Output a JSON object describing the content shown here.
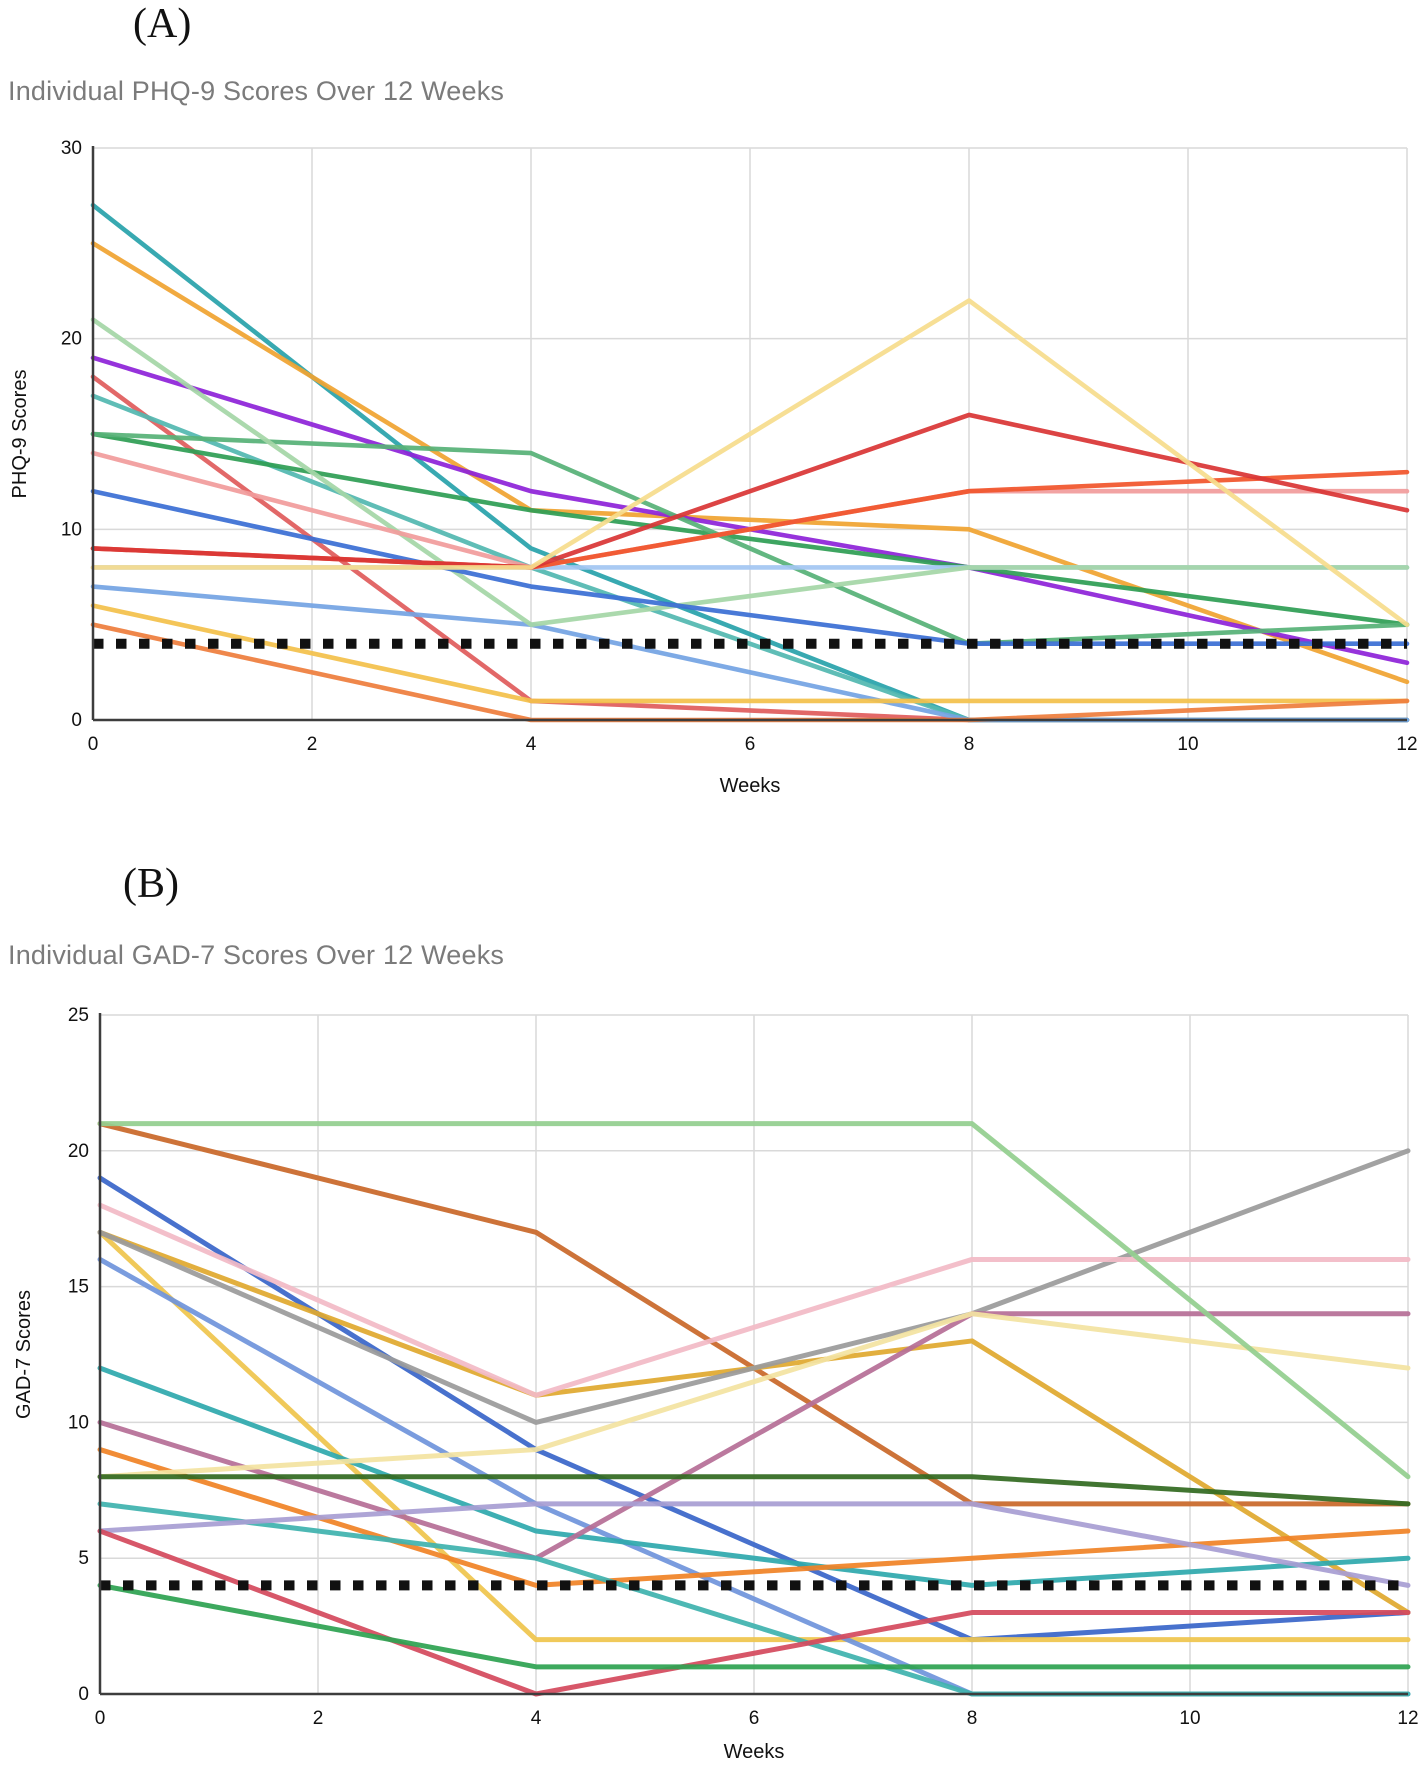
{
  "figure": {
    "background": "#ffffff",
    "axis_color": "#3d3d3d",
    "grid_color": "#d9d9d9",
    "tick_label_color": "#111111",
    "title_color": "#7b7b7b"
  },
  "chart_data": [
    {
      "type": "line",
      "panel_label": "(A)",
      "title": "Individual PHQ-9 Scores Over 12 Weeks",
      "xlabel": "Weeks",
      "ylabel": "PHQ-9 Scores",
      "xlim": [
        0,
        12
      ],
      "ylim": [
        0,
        30
      ],
      "xticks": [
        0,
        2,
        4,
        6,
        8,
        10,
        12
      ],
      "yticks": [
        0,
        10,
        20,
        30
      ],
      "grid": true,
      "legend": "none",
      "x": [
        0,
        4,
        8,
        12
      ],
      "threshold": {
        "value": 4,
        "style": "dashed",
        "color": "#111111"
      },
      "series": [
        {
          "color": "#29a3ab",
          "values": [
            27,
            9,
            0,
            0
          ]
        },
        {
          "color": "#f0a432",
          "values": [
            25,
            11,
            10,
            2
          ]
        },
        {
          "color": "#8e24d8",
          "values": [
            19,
            12,
            8,
            3
          ]
        },
        {
          "color": "#e05c5c",
          "values": [
            18,
            1,
            0,
            0
          ]
        },
        {
          "color": "#53b8b0",
          "values": [
            17,
            8,
            0,
            0
          ]
        },
        {
          "color": "#2f9e55",
          "values": [
            15,
            11,
            8,
            5
          ]
        },
        {
          "color": "#57b277",
          "values": [
            15,
            14,
            4,
            5
          ]
        },
        {
          "color": "#74a4e3",
          "values": [
            7,
            5,
            0,
            0
          ]
        },
        {
          "color": "#a3c6f2",
          "values": [
            8,
            8,
            8,
            8
          ]
        },
        {
          "color": "#a5d6a7",
          "values": [
            21,
            5,
            8,
            8
          ]
        },
        {
          "color": "#3b6fd4",
          "values": [
            12,
            7,
            4,
            4
          ]
        },
        {
          "color": "#f19c9c",
          "values": [
            14,
            8,
            12,
            12
          ]
        },
        {
          "color": "#f1552c",
          "values": [
            9,
            8,
            12,
            13
          ]
        },
        {
          "color": "#d93636",
          "values": [
            9,
            8,
            16,
            11
          ]
        },
        {
          "color": "#f6dd8d",
          "values": [
            8,
            8,
            22,
            5
          ]
        },
        {
          "color": "#f3c14b",
          "values": [
            6,
            1,
            1,
            1
          ]
        },
        {
          "color": "#ee7e3d",
          "values": [
            5,
            0,
            0,
            1
          ]
        }
      ]
    },
    {
      "type": "line",
      "panel_label": "(B)",
      "title": "Individual GAD-7 Scores Over 12 Weeks",
      "xlabel": "Weeks",
      "ylabel": "GAD-7 Scores",
      "xlim": [
        0,
        12
      ],
      "ylim": [
        0,
        25
      ],
      "xticks": [
        0,
        2,
        4,
        6,
        8,
        10,
        12
      ],
      "yticks": [
        0,
        5,
        10,
        15,
        20,
        25
      ],
      "grid": true,
      "legend": "none",
      "x": [
        0,
        4,
        8,
        12
      ],
      "threshold": {
        "value": 4,
        "style": "dashed",
        "color": "#111111"
      },
      "series": [
        {
          "color": "#c9682a",
          "values": [
            21,
            17,
            7,
            7
          ]
        },
        {
          "color": "#3a66c9",
          "values": [
            19,
            9,
            2,
            3
          ]
        },
        {
          "color": "#efc54d",
          "values": [
            17,
            2,
            2,
            2
          ]
        },
        {
          "color": "#e0a92f",
          "values": [
            17,
            11,
            13,
            3
          ]
        },
        {
          "color": "#9b9b9b",
          "values": [
            17,
            10,
            14,
            20
          ]
        },
        {
          "color": "#f2bac6",
          "values": [
            18,
            11,
            16,
            16
          ]
        },
        {
          "color": "#7094dc",
          "values": [
            16,
            7,
            0,
            0
          ]
        },
        {
          "color": "#2fa9ad",
          "values": [
            12,
            6,
            4,
            5
          ]
        },
        {
          "color": "#b66f97",
          "values": [
            10,
            5,
            14,
            14
          ]
        },
        {
          "color": "#f08327",
          "values": [
            9,
            4,
            5,
            6
          ]
        },
        {
          "color": "#f3e3a1",
          "values": [
            8,
            9,
            14,
            12
          ]
        },
        {
          "color": "#3fb3ae",
          "values": [
            7,
            5,
            0,
            0
          ]
        },
        {
          "color": "#a89ed3",
          "values": [
            6,
            7,
            7,
            4
          ]
        },
        {
          "color": "#d44a5e",
          "values": [
            6,
            0,
            3,
            3
          ]
        },
        {
          "color": "#2ea352",
          "values": [
            4,
            1,
            1,
            1
          ]
        },
        {
          "color": "#93cf8f",
          "values": [
            21,
            21,
            21,
            8
          ]
        },
        {
          "color": "#336b21",
          "values": [
            8,
            8,
            8,
            7
          ]
        }
      ]
    }
  ]
}
